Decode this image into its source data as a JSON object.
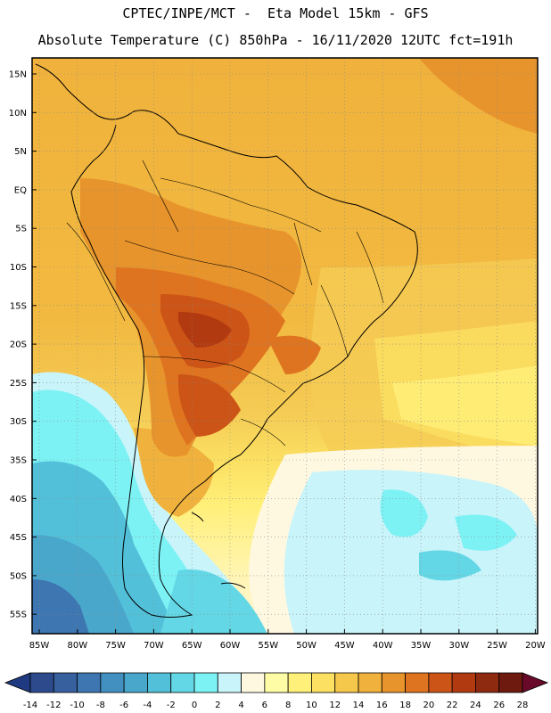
{
  "header": {
    "line1": "CPTEC/INPE/MCT -  Eta Model 15km - GFS",
    "line2": "Absolute Temperature (C) 850hPa - 16/11/2020 12UTC fct=191h"
  },
  "axes": {
    "lat_labels": [
      "15N",
      "10N",
      "5N",
      "EQ",
      "5S",
      "10S",
      "15S",
      "20S",
      "25S",
      "30S",
      "35S",
      "40S",
      "45S",
      "50S",
      "55S"
    ],
    "lon_labels": [
      "85W",
      "80W",
      "75W",
      "70W",
      "65W",
      "60W",
      "55W",
      "50W",
      "45W",
      "40W",
      "35W",
      "30W",
      "25W",
      "20W"
    ]
  },
  "colorbar": {
    "ticks": [
      "-14",
      "-12",
      "-10",
      "-8",
      "-6",
      "-4",
      "-2",
      "0",
      "2",
      "4",
      "6",
      "8",
      "10",
      "12",
      "14",
      "16",
      "18",
      "20",
      "22",
      "24",
      "26",
      "28"
    ],
    "colors": [
      "#2c4a8c",
      "#37619e",
      "#3d76b1",
      "#4290bf",
      "#4aa7cc",
      "#53c0d9",
      "#64d7e6",
      "#7df2f5",
      "#c8f4fa",
      "#fff8e1",
      "#fffca6",
      "#fff07a",
      "#fbe062",
      "#f5c84c",
      "#f0b23c",
      "#e8942c",
      "#df7420",
      "#cc5416",
      "#b23a10",
      "#8e2a10",
      "#6e1a0e"
    ],
    "under_color": "#1f3a80",
    "over_color": "#6a0a2a"
  }
}
